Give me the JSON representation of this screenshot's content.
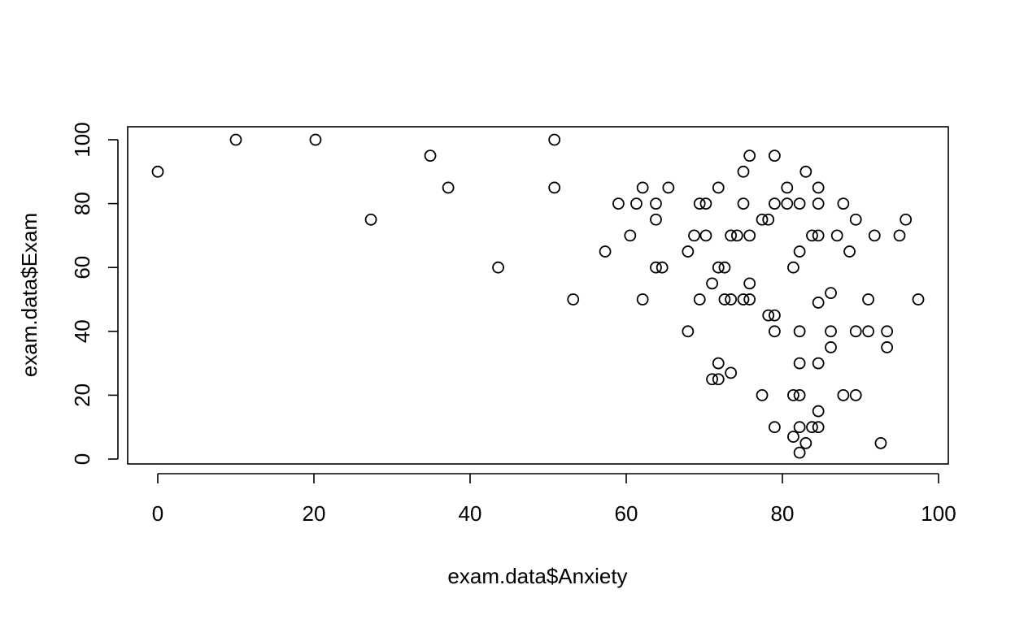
{
  "chart_data": {
    "type": "scatter",
    "xlabel": "exam.data$Anxiety",
    "ylabel": "exam.data$Exam",
    "xlim": [
      0,
      100
    ],
    "ylim": [
      0,
      100
    ],
    "xticks": [
      0,
      20,
      40,
      60,
      80,
      100
    ],
    "yticks": [
      0,
      20,
      40,
      60,
      80,
      100
    ],
    "grid": false,
    "series": [
      {
        "points": [
          [
            0,
            90
          ],
          [
            10,
            100
          ],
          [
            20.2,
            100
          ],
          [
            27.3,
            75
          ],
          [
            34.9,
            95
          ],
          [
            37.2,
            85
          ],
          [
            43.6,
            60
          ],
          [
            50.8,
            100
          ],
          [
            50.8,
            85
          ],
          [
            53.2,
            50
          ],
          [
            57.3,
            65
          ],
          [
            59,
            80
          ],
          [
            60.5,
            70
          ],
          [
            61.3,
            80
          ],
          [
            62.1,
            85
          ],
          [
            62.1,
            50
          ],
          [
            63.8,
            80
          ],
          [
            63.8,
            75
          ],
          [
            63.8,
            60
          ],
          [
            64.6,
            60
          ],
          [
            65.4,
            85
          ],
          [
            67.9,
            65
          ],
          [
            67.9,
            40
          ],
          [
            68.7,
            70
          ],
          [
            69.4,
            80
          ],
          [
            69.4,
            50
          ],
          [
            70.2,
            80
          ],
          [
            70.2,
            70
          ],
          [
            71,
            55
          ],
          [
            71,
            25
          ],
          [
            71.8,
            85
          ],
          [
            71.8,
            60
          ],
          [
            71.8,
            30
          ],
          [
            71.8,
            25
          ],
          [
            72.6,
            60
          ],
          [
            72.6,
            50
          ],
          [
            73.4,
            70
          ],
          [
            73.4,
            50
          ],
          [
            73.4,
            27
          ],
          [
            74.2,
            70
          ],
          [
            75,
            90
          ],
          [
            75,
            80
          ],
          [
            75,
            50
          ],
          [
            75.8,
            95
          ],
          [
            75.8,
            70
          ],
          [
            75.8,
            55
          ],
          [
            75.8,
            50
          ],
          [
            77.4,
            75
          ],
          [
            77.4,
            20
          ],
          [
            78.2,
            75
          ],
          [
            78.2,
            45
          ],
          [
            79,
            95
          ],
          [
            79,
            80
          ],
          [
            79,
            45
          ],
          [
            79,
            40
          ],
          [
            79,
            10
          ],
          [
            80.6,
            85
          ],
          [
            80.6,
            80
          ],
          [
            81.4,
            60
          ],
          [
            81.4,
            20
          ],
          [
            81.4,
            7
          ],
          [
            82.2,
            80
          ],
          [
            82.2,
            65
          ],
          [
            82.2,
            40
          ],
          [
            82.2,
            30
          ],
          [
            82.2,
            20
          ],
          [
            82.2,
            10
          ],
          [
            82.2,
            2
          ],
          [
            83,
            90
          ],
          [
            83,
            5
          ],
          [
            83.8,
            70
          ],
          [
            83.8,
            10
          ],
          [
            84.6,
            85
          ],
          [
            84.6,
            80
          ],
          [
            84.6,
            70
          ],
          [
            84.6,
            49
          ],
          [
            84.6,
            30
          ],
          [
            84.6,
            15
          ],
          [
            84.6,
            10
          ],
          [
            86.2,
            52
          ],
          [
            86.2,
            40
          ],
          [
            86.2,
            35
          ],
          [
            87,
            70
          ],
          [
            87.8,
            80
          ],
          [
            87.8,
            20
          ],
          [
            88.6,
            65
          ],
          [
            89.4,
            75
          ],
          [
            89.4,
            40
          ],
          [
            89.4,
            20
          ],
          [
            91,
            50
          ],
          [
            91,
            40
          ],
          [
            91.8,
            70
          ],
          [
            92.6,
            5
          ],
          [
            93.4,
            40
          ],
          [
            93.4,
            35
          ],
          [
            95,
            70
          ],
          [
            95.8,
            75
          ],
          [
            97.4,
            50
          ]
        ]
      }
    ]
  }
}
